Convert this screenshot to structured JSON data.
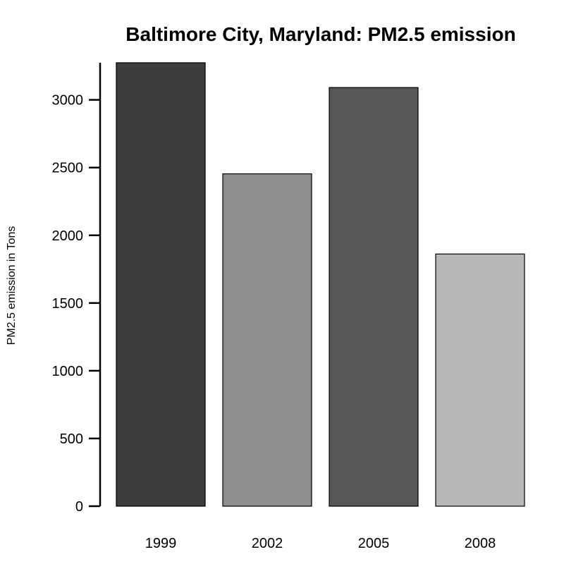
{
  "chart_data": {
    "type": "bar",
    "title": "Baltimore City, Maryland: PM2.5 emission",
    "xlabel": "",
    "ylabel": "PM2.5 emission in Tons",
    "categories": [
      "1999",
      "2002",
      "2005",
      "2008"
    ],
    "values": [
      3274,
      2454,
      3091,
      1862
    ],
    "colors": [
      "#3d3d3d",
      "#8e8e8e",
      "#575757",
      "#b8b8b8"
    ],
    "ylim": [
      0,
      3274
    ],
    "yticks": [
      0,
      500,
      1000,
      1500,
      2000,
      2500,
      3000
    ],
    "grid": false,
    "legend": "none"
  }
}
